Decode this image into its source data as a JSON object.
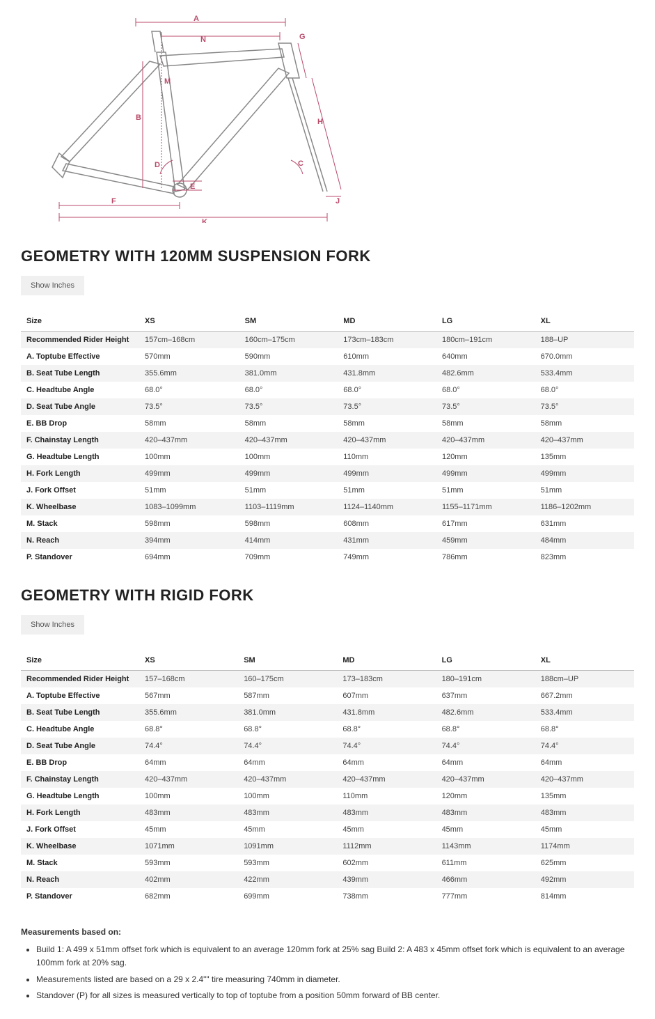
{
  "diagram": {
    "stroke": "#888",
    "dim_color": "#b94a6a",
    "font_size": 11,
    "labels": [
      "A",
      "B",
      "C",
      "D",
      "E",
      "F",
      "G",
      "H",
      "J",
      "K",
      "M",
      "N"
    ]
  },
  "section1": {
    "title": "GEOMETRY WITH 120MM SUSPENSION FORK",
    "button": "Show Inches",
    "columns": [
      "Size",
      "XS",
      "SM",
      "MD",
      "LG",
      "XL"
    ],
    "rows": [
      [
        "Recommended Rider Height",
        "157cm–168cm",
        "160cm–175cm",
        "173cm–183cm",
        "180cm–191cm",
        "188–UP"
      ],
      [
        "A. Toptube Effective",
        "570mm",
        "590mm",
        "610mm",
        "640mm",
        "670.0mm"
      ],
      [
        "B. Seat Tube Length",
        "355.6mm",
        "381.0mm",
        "431.8mm",
        "482.6mm",
        "533.4mm"
      ],
      [
        "C. Headtube Angle",
        "68.0°",
        "68.0°",
        "68.0°",
        "68.0°",
        "68.0°"
      ],
      [
        "D. Seat Tube Angle",
        "73.5°",
        "73.5°",
        "73.5°",
        "73.5°",
        "73.5°"
      ],
      [
        "E. BB Drop",
        "58mm",
        "58mm",
        "58mm",
        "58mm",
        "58mm"
      ],
      [
        "F. Chainstay Length",
        "420–437mm",
        "420–437mm",
        "420–437mm",
        "420–437mm",
        "420–437mm"
      ],
      [
        "G. Headtube Length",
        "100mm",
        "100mm",
        "110mm",
        "120mm",
        "135mm"
      ],
      [
        "H. Fork Length",
        "499mm",
        "499mm",
        "499mm",
        "499mm",
        "499mm"
      ],
      [
        "J. Fork Offset",
        "51mm",
        "51mm",
        "51mm",
        "51mm",
        "51mm"
      ],
      [
        "K. Wheelbase",
        "1083–1099mm",
        "1103–1119mm",
        "1124–1140mm",
        "1155–1171mm",
        "1186–1202mm"
      ],
      [
        "M. Stack",
        "598mm",
        "598mm",
        "608mm",
        "617mm",
        "631mm"
      ],
      [
        "N. Reach",
        "394mm",
        "414mm",
        "431mm",
        "459mm",
        "484mm"
      ],
      [
        "P. Standover",
        "694mm",
        "709mm",
        "749mm",
        "786mm",
        "823mm"
      ]
    ]
  },
  "section2": {
    "title": "GEOMETRY WITH RIGID FORK",
    "button": "Show Inches",
    "columns": [
      "Size",
      "XS",
      "SM",
      "MD",
      "LG",
      "XL"
    ],
    "rows": [
      [
        "Recommended Rider Height",
        "157–168cm",
        "160–175cm",
        "173–183cm",
        "180–191cm",
        "188cm–UP"
      ],
      [
        "A. Toptube Effective",
        "567mm",
        "587mm",
        "607mm",
        "637mm",
        "667.2mm"
      ],
      [
        "B. Seat Tube Length",
        "355.6mm",
        "381.0mm",
        "431.8mm",
        "482.6mm",
        "533.4mm"
      ],
      [
        "C. Headtube Angle",
        "68.8°",
        "68.8°",
        "68.8°",
        "68.8°",
        "68.8°"
      ],
      [
        "D. Seat Tube Angle",
        "74.4°",
        "74.4°",
        "74.4°",
        "74.4°",
        "74.4°"
      ],
      [
        "E. BB Drop",
        "64mm",
        "64mm",
        "64mm",
        "64mm",
        "64mm"
      ],
      [
        "F. Chainstay Length",
        "420–437mm",
        "420–437mm",
        "420–437mm",
        "420–437mm",
        "420–437mm"
      ],
      [
        "G. Headtube Length",
        "100mm",
        "100mm",
        "110mm",
        "120mm",
        "135mm"
      ],
      [
        "H. Fork Length",
        "483mm",
        "483mm",
        "483mm",
        "483mm",
        "483mm"
      ],
      [
        "J. Fork Offset",
        "45mm",
        "45mm",
        "45mm",
        "45mm",
        "45mm"
      ],
      [
        "K. Wheelbase",
        "1071mm",
        "1091mm",
        "1112mm",
        "1143mm",
        "1174mm"
      ],
      [
        "M. Stack",
        "593mm",
        "593mm",
        "602mm",
        "611mm",
        "625mm"
      ],
      [
        "N. Reach",
        "402mm",
        "422mm",
        "439mm",
        "466mm",
        "492mm"
      ],
      [
        "P. Standover",
        "682mm",
        "699mm",
        "738mm",
        "777mm",
        "814mm"
      ]
    ]
  },
  "notes": {
    "heading": "Measurements based on:",
    "items": [
      "Build 1: A 499 x 51mm offset fork which is equivalent to an average 120mm fork at 25% sag Build 2: A 483 x 45mm offset fork which is equivalent to an average 100mm fork at 20% sag.",
      "Measurements listed are based on a 29 x 2.4\"\" tire measuring 740mm in diameter.",
      "Standover (P) for all sizes is measured vertically to top of toptube from a position 50mm forward of BB center."
    ]
  }
}
